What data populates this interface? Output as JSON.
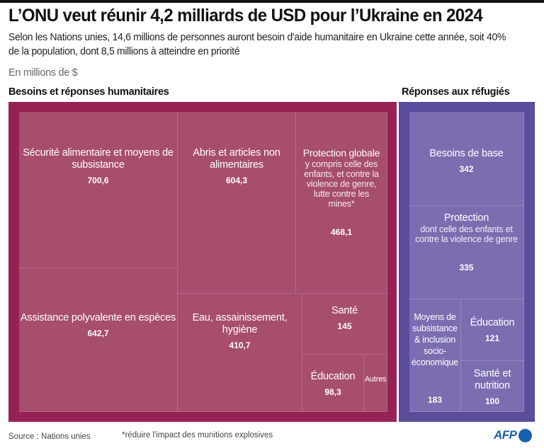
{
  "header": {
    "title": "L’ONU veut réunir 4,2 milliards de USD pour l’Ukraine en 2024",
    "subtitle": "Selon les Nations unies, 14,6 millions de personnes auront besoin d'aide humanitaire en Ukraine cette année, soit 40% de la population, dont 8,5 millions à atteindre en priorité",
    "unit": "En millions de $"
  },
  "colors": {
    "humanitarian_outer": "#952252",
    "humanitarian_cell": "#a74d6d",
    "humanitarian_line": "#b8688a",
    "refugee_outer": "#5b4c9c",
    "refugee_cell": "#7b6db0",
    "refugee_line": "#9488c0",
    "afp_blue": "#1b5fb0"
  },
  "chart_data": {
    "type": "treemap",
    "title": "L’ONU veut réunir 4,2 milliards de USD pour l’Ukraine en 2024",
    "unit": "En millions de $",
    "groups": [
      {
        "name": "Besoins et réponses humanitaires",
        "items": [
          {
            "label": "Sécurité alimentaire et moyens de subsistance",
            "sub": "",
            "value": 700.6,
            "value_label": "700,6"
          },
          {
            "label": "Assistance polyvalente en espèces",
            "sub": "",
            "value": 642.7,
            "value_label": "642,7"
          },
          {
            "label": "Abris et articles non alimentaires",
            "sub": "",
            "value": 604.3,
            "value_label": "604,3"
          },
          {
            "label": "Protection globale",
            "sub": "y compris celle des enfants, et contre la violence de genre, lutte contre les mines*",
            "value": 468.1,
            "value_label": "468,1"
          },
          {
            "label": "Eau, assainissement, hygiène",
            "sub": "",
            "value": 410.7,
            "value_label": "410,7"
          },
          {
            "label": "Santé",
            "sub": "",
            "value": 145,
            "value_label": "145"
          },
          {
            "label": "Éducation",
            "sub": "",
            "value": 98.3,
            "value_label": "98,3"
          },
          {
            "label": "Autres",
            "sub": "",
            "value": null,
            "value_label": ""
          }
        ]
      },
      {
        "name": "Réponses aux réfugiés",
        "items": [
          {
            "label": "Besoins de base",
            "sub": "",
            "value": 342,
            "value_label": "342"
          },
          {
            "label": "Protection",
            "sub": "dont celle des enfants et contre la violence de genre",
            "value": 335,
            "value_label": "335"
          },
          {
            "label": "Moyens de subsistance & inclusion socio-économique",
            "sub": "",
            "value": 183,
            "value_label": "183"
          },
          {
            "label": "Éducation",
            "sub": "",
            "value": 121,
            "value_label": "121"
          },
          {
            "label": "Santé et nutrition",
            "sub": "",
            "value": 100,
            "value_label": "100"
          }
        ]
      }
    ]
  },
  "footer": {
    "source": "Source : Nations unies",
    "note": "*réduire l'impact des munitions explosives",
    "logo": "AFP"
  }
}
